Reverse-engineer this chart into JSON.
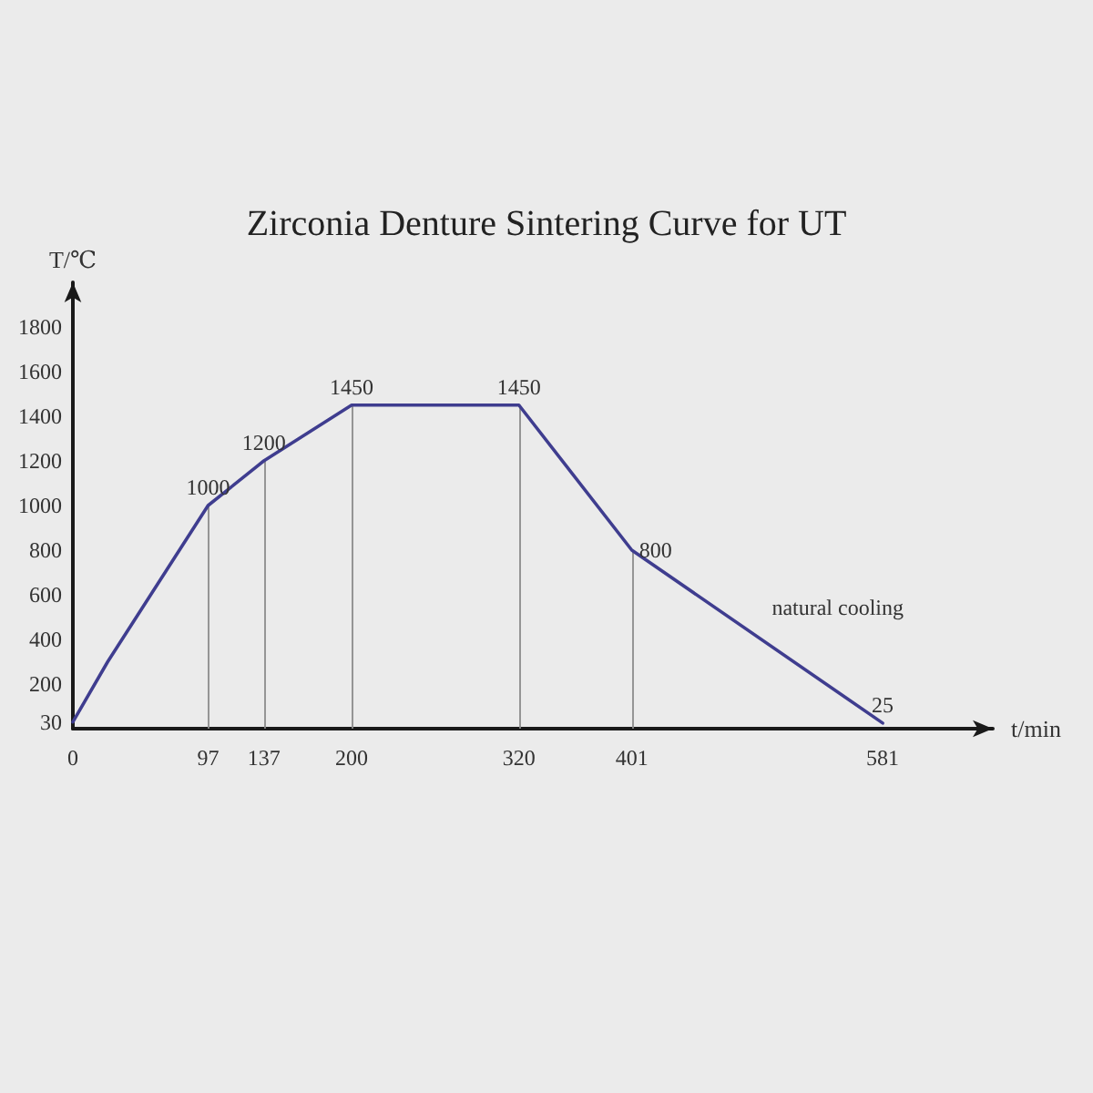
{
  "chart_data": {
    "type": "line",
    "title": "Zirconia Denture Sintering Curve for UT",
    "xlabel": "t/min",
    "ylabel": "T/℃",
    "x": [
      0,
      25,
      97,
      137,
      200,
      320,
      401,
      581
    ],
    "series": [
      {
        "color": "#3f3d8f",
        "values": [
          30,
          300,
          1000,
          1200,
          1450,
          1450,
          800,
          25
        ],
        "value_labels": [
          null,
          null,
          "1000",
          "1200",
          "1450",
          "1450",
          "800",
          "25"
        ]
      }
    ],
    "xlim": [
      0,
      660
    ],
    "xticks": [
      0,
      97,
      137,
      200,
      320,
      401,
      581
    ],
    "ylim": [
      0,
      2000
    ],
    "yticks": [
      30,
      200,
      400,
      600,
      800,
      1000,
      1200,
      1400,
      1600,
      1800
    ],
    "ref_lines": [
      {
        "axis": "x",
        "value": 97,
        "color": "#8c8c8c"
      },
      {
        "axis": "x",
        "value": 137,
        "color": "#8c8c8c"
      },
      {
        "axis": "x",
        "value": 200,
        "color": "#8c8c8c"
      },
      {
        "axis": "x",
        "value": 320,
        "color": "#8c8c8c"
      },
      {
        "axis": "x",
        "value": 401,
        "color": "#8c8c8c"
      }
    ],
    "annotations": [
      "natural cooling"
    ],
    "marker": "none",
    "line_style": "solid",
    "grid": false
  }
}
